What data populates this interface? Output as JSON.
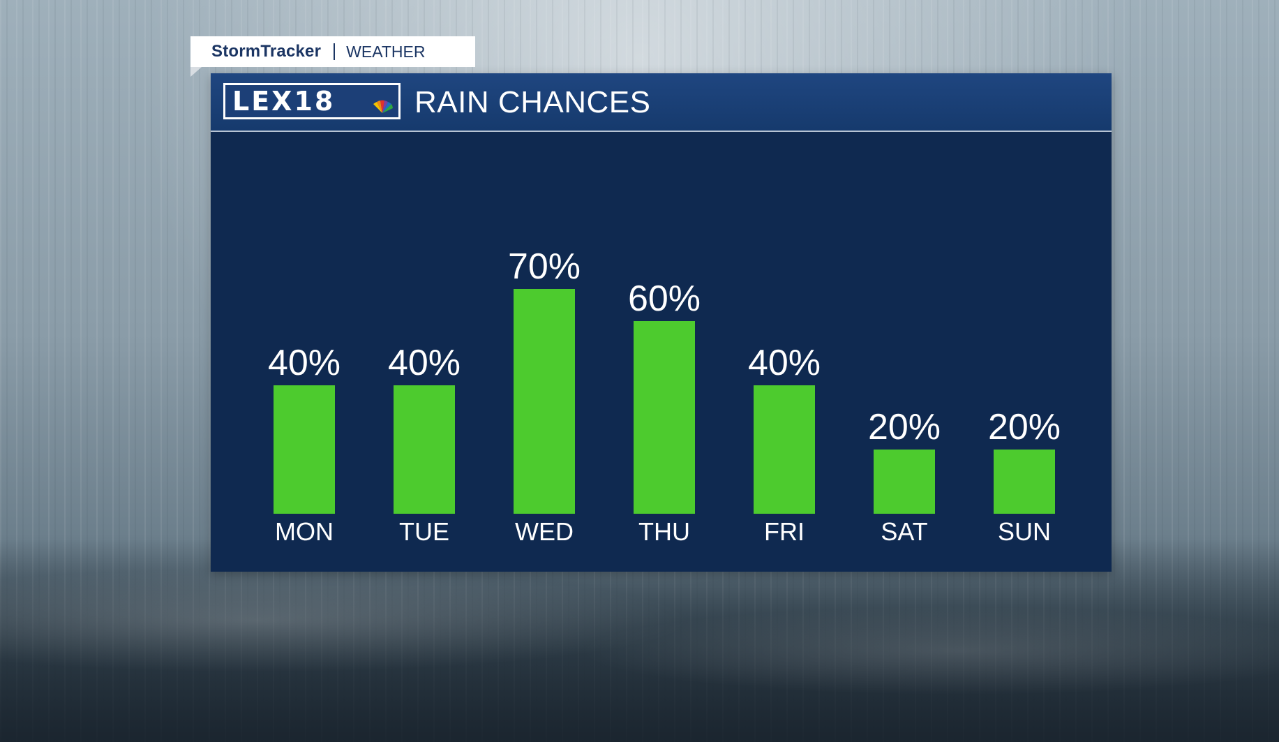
{
  "brand": {
    "name": "StormTracker",
    "section": "WEATHER"
  },
  "panel": {
    "logo_text": "LEX18",
    "title": "RAIN CHANCES"
  },
  "colors": {
    "bar": "#4dcb2e",
    "panel_bg": "#0f2950",
    "header_bg": "#1f4680",
    "text": "#ffffff"
  },
  "chart_data": {
    "type": "bar",
    "title": "RAIN CHANCES",
    "categories": [
      "MON",
      "TUE",
      "WED",
      "THU",
      "FRI",
      "SAT",
      "SUN"
    ],
    "values": [
      40,
      40,
      70,
      60,
      40,
      20,
      20
    ],
    "data_labels": [
      "40%",
      "40%",
      "70%",
      "60%",
      "40%",
      "20%",
      "20%"
    ],
    "ylim": [
      0,
      100
    ],
    "unit": "%",
    "grid": false,
    "legend": "none"
  }
}
